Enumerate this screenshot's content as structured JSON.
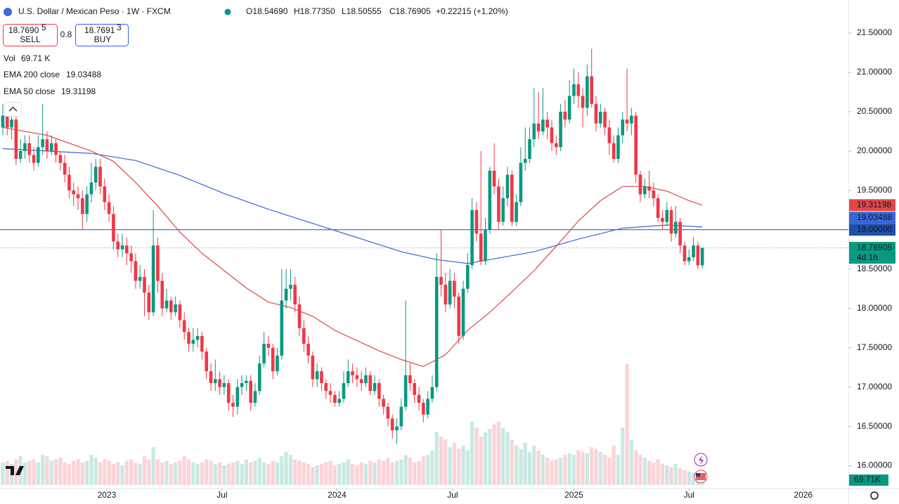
{
  "chart_data": {
    "type": "candlestick",
    "title": "U.S. Dollar / Mexican Peso · 1W · FXCM",
    "ohlc_labels": [
      "O18.54690",
      "H18.77350",
      "L18.50555",
      "C18.76905"
    ],
    "change_label": "+0.22215 (+1.20%)",
    "sell": {
      "price": "18.7690",
      "pip": "5",
      "label": "SELL"
    },
    "spread": "0.8",
    "buy": {
      "price": "18.7691",
      "pip": "3",
      "label": "BUY"
    },
    "up_color": "#089981",
    "down_color": "#f23645",
    "ohlc": [
      [
        20.3,
        20.6,
        20.2,
        20.45
      ],
      [
        20.45,
        20.55,
        20.2,
        20.3
      ],
      [
        20.3,
        20.5,
        20.15,
        20.4
      ],
      [
        20.4,
        20.45,
        19.82,
        19.9
      ],
      [
        19.9,
        20.15,
        19.85,
        20.0
      ],
      [
        20.0,
        20.2,
        19.9,
        20.1
      ],
      [
        20.1,
        20.2,
        19.85,
        19.95
      ],
      [
        19.95,
        20.05,
        19.75,
        19.85
      ],
      [
        19.85,
        20.2,
        19.8,
        20.05
      ],
      [
        20.05,
        20.6,
        19.95,
        20.15
      ],
      [
        20.15,
        20.25,
        19.9,
        20.0
      ],
      [
        20.0,
        20.2,
        19.95,
        20.1
      ],
      [
        20.1,
        20.15,
        19.85,
        19.95
      ],
      [
        19.95,
        20.0,
        19.75,
        19.85
      ],
      [
        19.85,
        19.95,
        19.6,
        19.7
      ],
      [
        19.7,
        19.8,
        19.4,
        19.5
      ],
      [
        19.5,
        19.6,
        19.3,
        19.45
      ],
      [
        19.45,
        19.55,
        19.25,
        19.4
      ],
      [
        19.4,
        19.5,
        19.0,
        19.2
      ],
      [
        19.2,
        19.55,
        19.1,
        19.45
      ],
      [
        19.45,
        19.85,
        19.35,
        19.6
      ],
      [
        19.6,
        19.9,
        19.5,
        19.8
      ],
      [
        19.8,
        19.9,
        19.45,
        19.55
      ],
      [
        19.55,
        19.65,
        19.25,
        19.35
      ],
      [
        19.35,
        19.45,
        19.1,
        19.2
      ],
      [
        19.2,
        19.3,
        18.75,
        18.85
      ],
      [
        18.85,
        18.95,
        18.65,
        18.75
      ],
      [
        18.75,
        18.95,
        18.65,
        18.8
      ],
      [
        18.8,
        18.9,
        18.55,
        18.7
      ],
      [
        18.7,
        18.8,
        18.45,
        18.6
      ],
      [
        18.6,
        18.7,
        18.25,
        18.35
      ],
      [
        18.35,
        18.55,
        18.25,
        18.4
      ],
      [
        18.4,
        18.5,
        17.9,
        18.2
      ],
      [
        18.2,
        18.3,
        17.85,
        17.95
      ],
      [
        17.95,
        19.25,
        17.9,
        18.8
      ],
      [
        18.8,
        18.9,
        18.2,
        18.35
      ],
      [
        18.35,
        18.45,
        17.9,
        18.0
      ],
      [
        18.0,
        18.25,
        17.95,
        18.1
      ],
      [
        18.1,
        18.15,
        17.85,
        17.95
      ],
      [
        17.95,
        18.15,
        17.9,
        18.05
      ],
      [
        18.05,
        18.1,
        17.75,
        17.85
      ],
      [
        17.85,
        17.95,
        17.6,
        17.7
      ],
      [
        17.7,
        17.75,
        17.45,
        17.55
      ],
      [
        17.55,
        17.75,
        17.45,
        17.6
      ],
      [
        17.6,
        17.75,
        17.5,
        17.65
      ],
      [
        17.65,
        17.7,
        17.35,
        17.45
      ],
      [
        17.45,
        17.5,
        17.1,
        17.2
      ],
      [
        17.2,
        17.3,
        16.95,
        17.05
      ],
      [
        17.05,
        17.35,
        16.95,
        17.1
      ],
      [
        17.1,
        17.2,
        16.9,
        17.0
      ],
      [
        17.0,
        17.15,
        16.9,
        17.05
      ],
      [
        17.05,
        17.1,
        16.7,
        16.8
      ],
      [
        16.8,
        16.9,
        16.62,
        16.75
      ],
      [
        16.75,
        17.1,
        16.65,
        17.0
      ],
      [
        17.0,
        17.15,
        16.9,
        17.05
      ],
      [
        17.05,
        17.15,
        16.95,
        17.08
      ],
      [
        17.08,
        17.15,
        16.7,
        16.8
      ],
      [
        16.8,
        17.05,
        16.75,
        16.95
      ],
      [
        16.95,
        17.4,
        16.9,
        17.3
      ],
      [
        17.3,
        17.7,
        17.25,
        17.55
      ],
      [
        17.55,
        17.65,
        17.4,
        17.5
      ],
      [
        17.5,
        17.55,
        17.1,
        17.2
      ],
      [
        17.2,
        17.5,
        17.15,
        17.4
      ],
      [
        17.4,
        18.5,
        17.35,
        18.1
      ],
      [
        18.1,
        18.5,
        18.0,
        18.25
      ],
      [
        18.25,
        18.5,
        18.1,
        18.3
      ],
      [
        18.3,
        18.4,
        17.95,
        18.05
      ],
      [
        18.05,
        18.15,
        17.65,
        17.75
      ],
      [
        17.75,
        17.85,
        17.45,
        17.55
      ],
      [
        17.55,
        17.65,
        17.3,
        17.4
      ],
      [
        17.4,
        17.45,
        17.0,
        17.1
      ],
      [
        17.1,
        17.3,
        17.0,
        17.2
      ],
      [
        17.2,
        17.25,
        16.95,
        17.05
      ],
      [
        17.05,
        17.1,
        16.85,
        16.95
      ],
      [
        16.95,
        17.05,
        16.8,
        16.9
      ],
      [
        16.9,
        16.95,
        16.75,
        16.8
      ],
      [
        16.8,
        16.95,
        16.75,
        16.85
      ],
      [
        16.85,
        17.2,
        16.8,
        17.05
      ],
      [
        17.05,
        17.35,
        17.0,
        17.2
      ],
      [
        17.2,
        17.3,
        17.05,
        17.15
      ],
      [
        17.15,
        17.25,
        17.0,
        17.1
      ],
      [
        17.1,
        17.2,
        16.95,
        17.05
      ],
      [
        17.05,
        17.25,
        17.0,
        17.15
      ],
      [
        17.15,
        17.2,
        16.9,
        16.95
      ],
      [
        16.95,
        17.15,
        16.9,
        17.05
      ],
      [
        17.05,
        17.1,
        16.75,
        16.85
      ],
      [
        16.85,
        16.9,
        16.65,
        16.75
      ],
      [
        16.75,
        16.8,
        16.5,
        16.6
      ],
      [
        16.6,
        16.65,
        16.35,
        16.45
      ],
      [
        16.45,
        16.6,
        16.28,
        16.5
      ],
      [
        16.5,
        16.85,
        16.45,
        16.75
      ],
      [
        16.75,
        18.1,
        16.7,
        17.15
      ],
      [
        17.15,
        17.3,
        16.95,
        17.05
      ],
      [
        17.05,
        17.1,
        16.8,
        16.9
      ],
      [
        16.9,
        17.0,
        16.7,
        16.8
      ],
      [
        16.8,
        16.85,
        16.55,
        16.65
      ],
      [
        16.65,
        16.95,
        16.6,
        16.85
      ],
      [
        16.85,
        17.15,
        16.8,
        17.0
      ],
      [
        17.0,
        18.7,
        16.95,
        18.4
      ],
      [
        18.4,
        19.0,
        18.15,
        18.3
      ],
      [
        18.3,
        18.45,
        17.95,
        18.05
      ],
      [
        18.05,
        18.5,
        18.0,
        18.35
      ],
      [
        18.35,
        18.45,
        18.0,
        18.15
      ],
      [
        18.15,
        18.2,
        17.55,
        17.65
      ],
      [
        17.65,
        18.35,
        17.6,
        18.25
      ],
      [
        18.25,
        18.7,
        18.2,
        18.55
      ],
      [
        18.55,
        19.4,
        18.5,
        19.25
      ],
      [
        19.25,
        19.35,
        18.85,
        18.95
      ],
      [
        18.95,
        20.0,
        18.55,
        18.6
      ],
      [
        18.6,
        19.15,
        18.55,
        19.0
      ],
      [
        19.0,
        19.8,
        18.95,
        19.75
      ],
      [
        19.75,
        20.1,
        19.45,
        19.55
      ],
      [
        19.55,
        19.65,
        19.0,
        19.1
      ],
      [
        19.1,
        19.55,
        19.05,
        19.4
      ],
      [
        19.4,
        19.8,
        19.3,
        19.7
      ],
      [
        19.7,
        19.75,
        19.05,
        19.1
      ],
      [
        19.1,
        19.45,
        19.05,
        19.35
      ],
      [
        19.35,
        20.05,
        19.3,
        19.85
      ],
      [
        19.85,
        20.3,
        19.75,
        19.9
      ],
      [
        19.9,
        20.3,
        19.85,
        20.15
      ],
      [
        20.15,
        20.8,
        20.05,
        20.35
      ],
      [
        20.35,
        20.75,
        20.15,
        20.25
      ],
      [
        20.25,
        20.8,
        20.2,
        20.4
      ],
      [
        20.4,
        20.5,
        20.15,
        20.3
      ],
      [
        20.3,
        20.4,
        20.0,
        20.1
      ],
      [
        20.1,
        20.2,
        19.95,
        20.05
      ],
      [
        20.05,
        20.6,
        20.0,
        20.5
      ],
      [
        20.5,
        20.65,
        20.3,
        20.4
      ],
      [
        20.4,
        20.9,
        20.35,
        20.7
      ],
      [
        20.7,
        21.05,
        20.6,
        20.85
      ],
      [
        20.85,
        21.0,
        20.55,
        20.7
      ],
      [
        20.7,
        20.8,
        20.3,
        20.55
      ],
      [
        20.55,
        21.1,
        20.45,
        20.95
      ],
      [
        20.95,
        21.3,
        20.55,
        20.6
      ],
      [
        20.6,
        20.7,
        20.25,
        20.35
      ],
      [
        20.35,
        20.6,
        20.3,
        20.5
      ],
      [
        20.5,
        20.55,
        20.2,
        20.3
      ],
      [
        20.3,
        20.4,
        19.95,
        20.1
      ],
      [
        20.1,
        20.2,
        19.85,
        19.9
      ],
      [
        19.9,
        20.3,
        19.85,
        20.2
      ],
      [
        20.2,
        20.5,
        20.1,
        20.4
      ],
      [
        20.4,
        21.05,
        20.25,
        20.35
      ],
      [
        20.35,
        20.55,
        20.2,
        20.45
      ],
      [
        20.45,
        20.5,
        19.6,
        19.7
      ],
      [
        19.7,
        19.75,
        19.35,
        19.45
      ],
      [
        19.45,
        19.65,
        19.4,
        19.55
      ],
      [
        19.55,
        19.75,
        19.4,
        19.5
      ],
      [
        19.5,
        19.6,
        19.3,
        19.4
      ],
      [
        19.4,
        19.45,
        19.1,
        19.15
      ],
      [
        19.15,
        19.25,
        19.0,
        19.1
      ],
      [
        19.1,
        19.35,
        19.05,
        19.25
      ],
      [
        19.25,
        19.3,
        18.85,
        18.95
      ],
      [
        18.95,
        19.3,
        18.9,
        19.1
      ],
      [
        19.1,
        19.15,
        18.7,
        18.8
      ],
      [
        18.8,
        18.85,
        18.55,
        18.6
      ],
      [
        18.6,
        18.75,
        18.55,
        18.65
      ],
      [
        18.65,
        18.9,
        18.6,
        18.8
      ],
      [
        18.8,
        18.85,
        18.5,
        18.5469
      ],
      [
        18.5469,
        18.7735,
        18.50555,
        18.76905
      ]
    ],
    "volume": {
      "name": "Vol",
      "label": "69.71 K",
      "tag": "69.71K",
      "values": [
        150,
        160,
        140,
        170,
        190,
        150,
        160,
        170,
        150,
        200,
        190,
        160,
        170,
        180,
        150,
        140,
        160,
        170,
        150,
        160,
        200,
        180,
        150,
        170,
        160,
        140,
        150,
        130,
        160,
        170,
        150,
        140,
        190,
        170,
        250,
        170,
        150,
        160,
        140,
        150,
        160,
        190,
        170,
        150,
        140,
        150,
        170,
        160,
        140,
        150,
        130,
        140,
        150,
        160,
        140,
        170,
        150,
        160,
        180,
        150,
        140,
        160,
        150,
        190,
        220,
        200,
        170,
        160,
        150,
        140,
        120,
        130,
        140,
        150,
        160,
        130,
        140,
        150,
        170,
        140,
        130,
        150,
        140,
        160,
        150,
        170,
        160,
        180,
        150,
        160,
        170,
        200,
        180,
        150,
        160,
        190,
        200,
        230,
        350,
        320,
        300,
        250,
        280,
        240,
        260,
        230,
        420,
        380,
        320,
        350,
        370,
        400,
        420,
        380,
        350,
        300,
        260,
        240,
        280,
        220,
        260,
        230,
        200,
        180,
        160,
        170,
        180,
        200,
        210,
        200,
        230,
        220,
        210,
        250,
        240,
        220,
        200,
        180,
        260,
        200,
        380,
        800,
        300,
        230,
        200,
        180,
        160,
        150,
        170,
        140,
        130,
        120,
        140,
        110,
        100,
        90,
        80,
        75,
        69.71
      ]
    },
    "ema200": {
      "name": "EMA 200 close",
      "color": "#3667d6",
      "x": [
        0,
        20,
        30,
        40,
        50,
        60,
        70,
        80,
        90,
        98,
        105,
        110,
        120,
        130,
        140,
        150,
        158
      ],
      "values": [
        20.03,
        19.97,
        19.88,
        19.69,
        19.46,
        19.26,
        19.08,
        18.9,
        18.72,
        18.62,
        18.57,
        18.62,
        18.72,
        18.88,
        19.02,
        19.06,
        19.03488
      ]
    },
    "ema50": {
      "name": "EMA 50 close",
      "color": "#e04848",
      "x": [
        0,
        10,
        20,
        25,
        30,
        35,
        40,
        45,
        50,
        55,
        60,
        65,
        70,
        75,
        80,
        85,
        90,
        95,
        100,
        105,
        110,
        115,
        120,
        125,
        130,
        135,
        140,
        145,
        150,
        155,
        158
      ],
      "values": [
        20.3,
        20.2,
        20.0,
        19.87,
        19.6,
        19.3,
        18.97,
        18.7,
        18.48,
        18.26,
        18.08,
        18.01,
        17.9,
        17.72,
        17.59,
        17.46,
        17.35,
        17.26,
        17.41,
        17.72,
        17.95,
        18.21,
        18.48,
        18.79,
        19.11,
        19.37,
        19.55,
        19.55,
        19.49,
        19.37,
        19.31198
      ]
    },
    "hline": {
      "value": 19,
      "label": "19.00000",
      "color": "#1f4fa8"
    },
    "countdown": "4d 1h",
    "ylim": [
      15.71,
      21.92
    ],
    "yticks": [
      {
        "value": 21.5,
        "label": "21.50000"
      },
      {
        "value": 21,
        "label": "21.00000"
      },
      {
        "value": 20.5,
        "label": "20.50000"
      },
      {
        "value": 20,
        "label": "20.00000"
      },
      {
        "value": 19.5,
        "label": "19.50000"
      },
      {
        "value": 19,
        "label": "19.00000"
      },
      {
        "value": 18.5,
        "label": "18.50000"
      },
      {
        "value": 18,
        "label": "18.00000"
      },
      {
        "value": 17.5,
        "label": "17.50000"
      },
      {
        "value": 17,
        "label": "17.00000"
      },
      {
        "value": 16.5,
        "label": "16.50000"
      },
      {
        "value": 16,
        "label": "16.00000"
      }
    ],
    "xlim": [
      -0.63,
      191
    ],
    "xticks": [
      {
        "value": 23.5,
        "label": "2023"
      },
      {
        "value": 49.5,
        "label": "Jul"
      },
      {
        "value": 75.5,
        "label": "2024"
      },
      {
        "value": 101.6,
        "label": "Jul"
      },
      {
        "value": 129,
        "label": "2025"
      },
      {
        "value": 155,
        "label": "Jul"
      },
      {
        "value": 180.8,
        "label": "2026"
      }
    ]
  }
}
